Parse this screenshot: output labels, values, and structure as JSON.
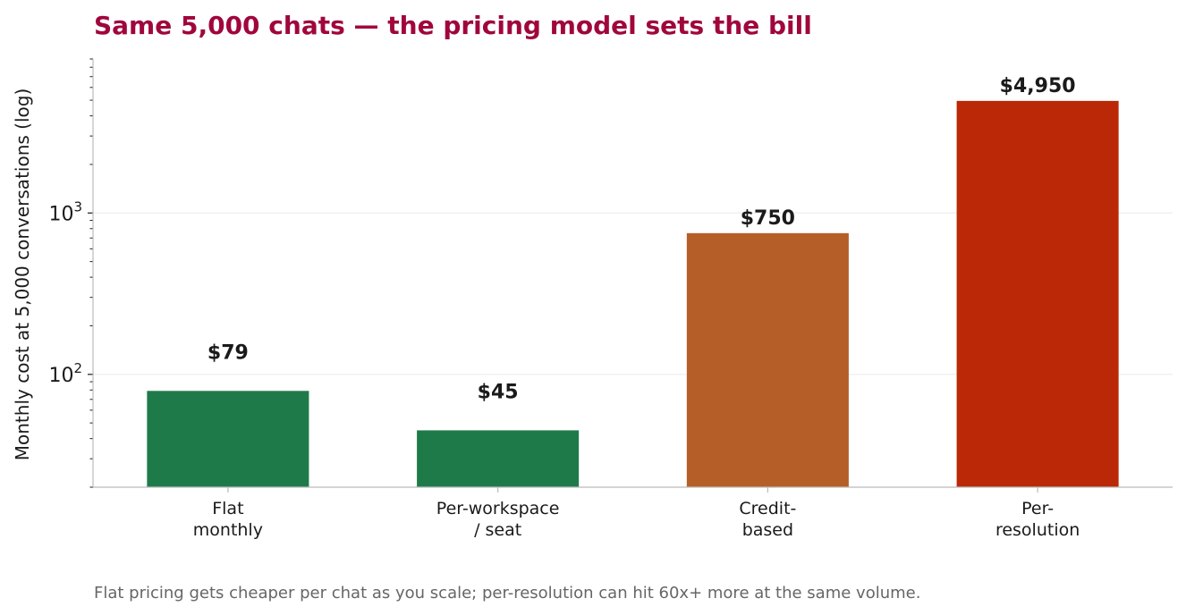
{
  "chart_data": {
    "type": "bar",
    "title": "Same 5,000 chats — the pricing model sets the bill",
    "ylabel": "Monthly cost at 5,000 conversations (log)",
    "xlabel": "",
    "yscale": "log",
    "ylim": [
      20,
      9000
    ],
    "grid": true,
    "categories": [
      [
        "Flat",
        "monthly"
      ],
      [
        "Per-workspace",
        "/ seat"
      ],
      [
        "Credit-",
        "based"
      ],
      [
        "Per-",
        "resolution"
      ]
    ],
    "values": [
      79,
      45,
      750,
      4950
    ],
    "data_labels": [
      "$79",
      "$45",
      "$750",
      "$4,950"
    ],
    "bar_colors": [
      "#1f7a4a",
      "#1f7a4a",
      "#b65e28",
      "#bb2808"
    ],
    "major_ticks": [
      {
        "value": 100,
        "base": "10",
        "exp": "2"
      },
      {
        "value": 1000,
        "base": "10",
        "exp": "3"
      }
    ],
    "caption": "Flat pricing gets cheaper per chat as you scale; per-resolution can hit 60x+ more at the same volume."
  },
  "colors": {
    "title": "#a0063c",
    "text": "#1a1a1a",
    "caption": "#666666",
    "axis": "#bbbbbb",
    "grid": "#eeeeee"
  }
}
